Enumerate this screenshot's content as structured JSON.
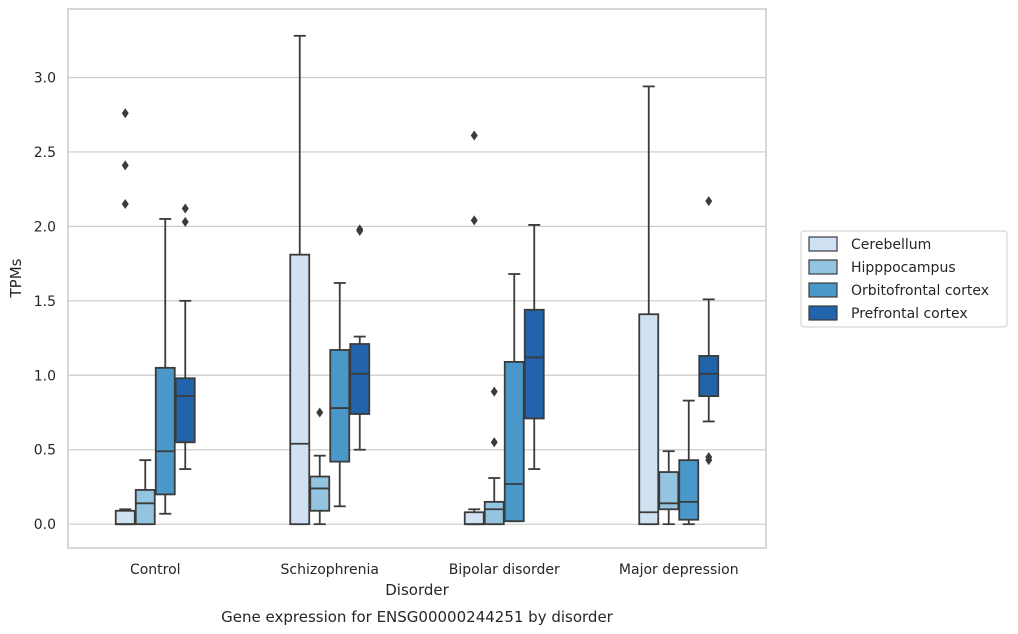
{
  "chart_data": {
    "type": "box",
    "caption": "Gene expression for ENSG00000244251 by disorder",
    "xlabel": "Disorder",
    "ylabel": "TPMs",
    "ylim": [
      -0.16,
      3.46
    ],
    "yticks": [
      "0.0",
      "0.5",
      "1.0",
      "1.5",
      "2.0",
      "2.5",
      "3.0"
    ],
    "grid": "horizontal",
    "legend_position": "right",
    "categories": [
      "Control",
      "Schizophrenia",
      "Bipolar disorder",
      "Major depression"
    ],
    "series": [
      {
        "name": "Cerebellum",
        "color": "#d0e1f2",
        "boxes": [
          {
            "whislo": 0.0,
            "q1": 0.0,
            "med": 0.0,
            "q3": 0.09,
            "whishi": 0.1,
            "fliers": [
              2.15,
              2.41,
              2.76
            ]
          },
          {
            "whislo": 0.0,
            "q1": 0.0,
            "med": 0.54,
            "q3": 1.81,
            "whishi": 3.28,
            "fliers": []
          },
          {
            "whislo": 0.0,
            "q1": 0.0,
            "med": 0.0,
            "q3": 0.08,
            "whishi": 0.1,
            "fliers": [
              2.04,
              2.61
            ]
          },
          {
            "whislo": 0.0,
            "q1": 0.0,
            "med": 0.08,
            "q3": 1.41,
            "whishi": 2.94,
            "fliers": []
          }
        ]
      },
      {
        "name": "Hipppocampus",
        "color": "#94c4df",
        "boxes": [
          {
            "whislo": 0.0,
            "q1": 0.0,
            "med": 0.14,
            "q3": 0.23,
            "whishi": 0.43,
            "fliers": []
          },
          {
            "whislo": 0.0,
            "q1": 0.09,
            "med": 0.24,
            "q3": 0.32,
            "whishi": 0.46,
            "fliers": [
              0.75
            ]
          },
          {
            "whislo": 0.0,
            "q1": 0.0,
            "med": 0.1,
            "q3": 0.15,
            "whishi": 0.31,
            "fliers": [
              0.55,
              0.89
            ]
          },
          {
            "whislo": 0.0,
            "q1": 0.1,
            "med": 0.14,
            "q3": 0.35,
            "whishi": 0.49,
            "fliers": []
          }
        ]
      },
      {
        "name": "Orbitofrontal cortex",
        "color": "#4a98c9",
        "boxes": [
          {
            "whislo": 0.07,
            "q1": 0.2,
            "med": 0.49,
            "q3": 1.05,
            "whishi": 2.05,
            "fliers": []
          },
          {
            "whislo": 0.12,
            "q1": 0.42,
            "med": 0.78,
            "q3": 1.17,
            "whishi": 1.62,
            "fliers": []
          },
          {
            "whislo": 0.02,
            "q1": 0.02,
            "med": 0.27,
            "q3": 1.09,
            "whishi": 1.68,
            "fliers": []
          },
          {
            "whislo": 0.0,
            "q1": 0.03,
            "med": 0.15,
            "q3": 0.43,
            "whishi": 0.83,
            "fliers": []
          }
        ]
      },
      {
        "name": "Prefrontal cortex",
        "color": "#2164ab",
        "boxes": [
          {
            "whislo": 0.37,
            "q1": 0.55,
            "med": 0.86,
            "q3": 0.98,
            "whishi": 1.5,
            "fliers": [
              2.03,
              2.12
            ]
          },
          {
            "whislo": 0.5,
            "q1": 0.74,
            "med": 1.01,
            "q3": 1.21,
            "whishi": 1.26,
            "fliers": [
              1.97,
              1.98
            ]
          },
          {
            "whislo": 0.37,
            "q1": 0.71,
            "med": 1.12,
            "q3": 1.44,
            "whishi": 2.01,
            "fliers": []
          },
          {
            "whislo": 0.69,
            "q1": 0.86,
            "med": 1.01,
            "q3": 1.13,
            "whishi": 1.51,
            "fliers": [
              0.43,
              0.45,
              2.17
            ]
          }
        ]
      }
    ]
  }
}
